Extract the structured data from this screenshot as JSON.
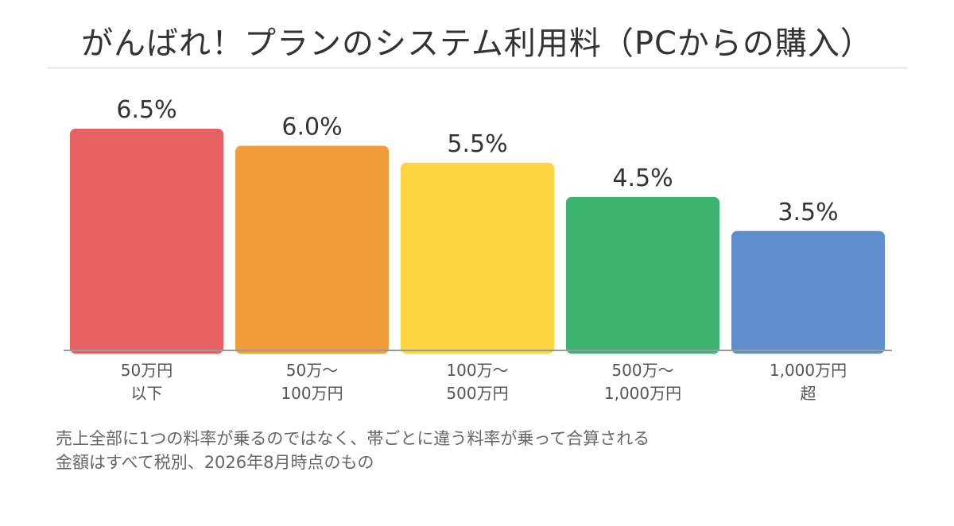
{
  "title": "がんばれ！プランのシステム利用料（PCからの購入）",
  "chart_data": {
    "type": "bar",
    "categories": [
      [
        "50万円",
        "以下"
      ],
      [
        "50万〜",
        "100万円"
      ],
      [
        "100万〜",
        "500万円"
      ],
      [
        "500万〜",
        "1,000万円"
      ],
      [
        "1,000万円",
        "超"
      ]
    ],
    "values": [
      6.5,
      6.0,
      5.5,
      4.5,
      3.5
    ],
    "value_labels": [
      "6.5%",
      "6.0%",
      "5.5%",
      "4.5%",
      "3.5%"
    ],
    "colors": [
      "#e66162",
      "#f39c3c",
      "#fcd440",
      "#3db370",
      "#5e8ccd"
    ],
    "ylim": [
      0,
      6.5
    ],
    "grid": false,
    "legend": "none"
  },
  "notes": [
    "売上全部に1つの料率が乗るのではなく、帯ごとに違う料率が乗って合算される",
    "金額はすべて税別、2026年8月時点のもの"
  ]
}
